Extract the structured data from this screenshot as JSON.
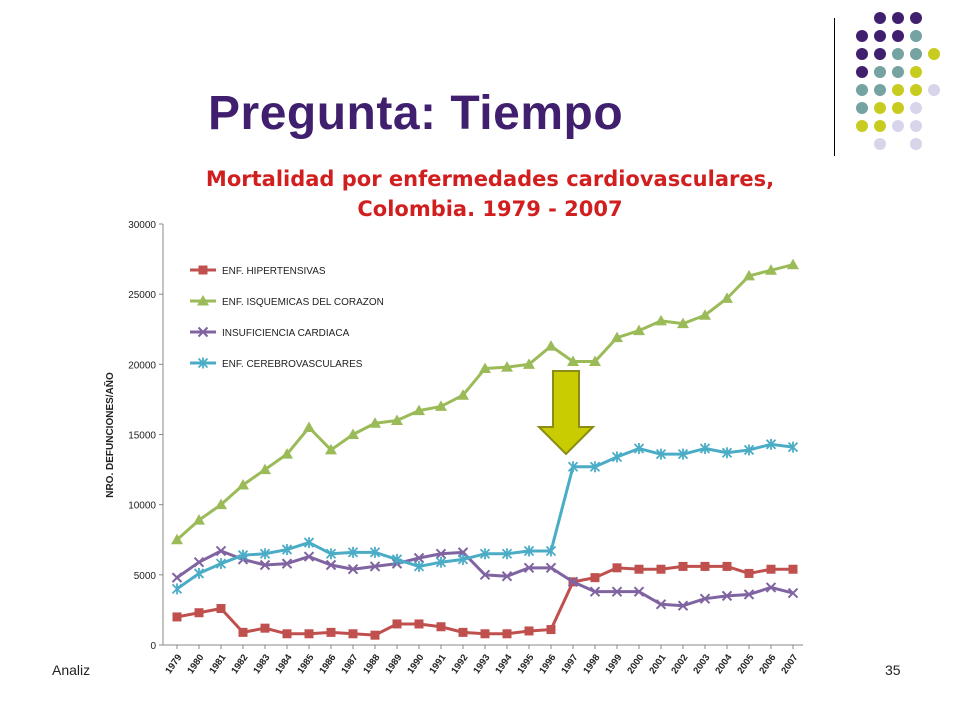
{
  "slide": {
    "title": "Pregunta: Tiempo",
    "footer_left": "Analiz",
    "page_number": "35",
    "dot_colors": [
      "#3f1f6e",
      "#74a3a1",
      "#c8cc1f",
      "#d8d4ea"
    ]
  },
  "chart_data": {
    "type": "line",
    "title": "Mortalidad por enfermedades cardiovasculares, Colombia. 1979 - 2007",
    "xlabel": "",
    "ylabel": "NRO. DEFUNCIONES/AÑO",
    "ylim": [
      0,
      30000
    ],
    "yticks": [
      0,
      5000,
      10000,
      15000,
      20000,
      25000,
      30000
    ],
    "grid": false,
    "legend": "top-left",
    "categories": [
      "1979",
      "1980",
      "1981",
      "1982",
      "1983",
      "1984",
      "1985",
      "1986",
      "1987",
      "1988",
      "1989",
      "1990",
      "1991",
      "1992",
      "1993",
      "1994",
      "1995",
      "1996",
      "1997",
      "1998",
      "1999",
      "2000",
      "2001",
      "2002",
      "2003",
      "2004",
      "2005",
      "2006",
      "2007"
    ],
    "series": [
      {
        "name": "ENF. HIPERTENSIVAS",
        "color": "#c0504d",
        "marker": "square",
        "values": [
          2000,
          2300,
          2600,
          900,
          1200,
          800,
          800,
          900,
          800,
          700,
          1500,
          1500,
          1300,
          900,
          800,
          800,
          1000,
          1100,
          4500,
          4800,
          5500,
          5400,
          5400,
          5600,
          5600,
          5600,
          5100,
          5400,
          5400
        ]
      },
      {
        "name": "ENF. ISQUEMICAS DEL CORAZON",
        "color": "#9bbb59",
        "marker": "triangle",
        "values": [
          7500,
          8900,
          10000,
          11400,
          12500,
          13600,
          15500,
          13900,
          15000,
          15800,
          16000,
          16700,
          17000,
          17800,
          19700,
          19800,
          20000,
          21300,
          20200,
          20200,
          21900,
          22400,
          23100,
          22900,
          23500,
          24700,
          26300,
          26700,
          27100
        ]
      },
      {
        "name": "INSUFICIENCIA CARDIACA",
        "color": "#8064a2",
        "marker": "x",
        "values": [
          4800,
          5900,
          6700,
          6100,
          5700,
          5800,
          6300,
          5700,
          5400,
          5600,
          5800,
          6200,
          6500,
          6600,
          5000,
          4900,
          5500,
          5500,
          4500,
          3800,
          3800,
          3800,
          2900,
          2800,
          3300,
          3500,
          3600,
          4100,
          3700
        ]
      },
      {
        "name": "ENF. CEREBROVASCULARES",
        "color": "#4bacc6",
        "marker": "asterisk",
        "values": [
          4000,
          5100,
          5800,
          6400,
          6500,
          6800,
          7300,
          6500,
          6600,
          6600,
          6100,
          5600,
          5900,
          6100,
          6500,
          6500,
          6700,
          6700,
          12700,
          12700,
          13400,
          14000,
          13600,
          13600,
          14000,
          13700,
          13900,
          14300,
          14100
        ]
      }
    ],
    "annotation": "down-arrow at 1997"
  }
}
